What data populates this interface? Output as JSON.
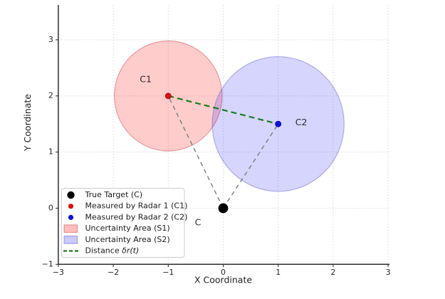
{
  "chart_data": {
    "type": "scatter",
    "xlabel": "X Coordinate",
    "ylabel": "Y Coordinate",
    "xlim": [
      -3,
      3
    ],
    "ylim": [
      -1,
      3.62
    ],
    "xticks": {
      "values": [
        -3,
        -2,
        -1,
        0,
        1,
        2,
        3
      ],
      "labels": [
        "−3",
        "−2",
        "−1",
        "0",
        "1",
        "2",
        "3"
      ]
    },
    "yticks": {
      "values": [
        -1,
        0,
        1,
        2,
        3
      ],
      "labels": [
        "−1",
        "0",
        "1",
        "2",
        "3"
      ]
    },
    "grid": {
      "visible": true,
      "style": "dotted",
      "color": "#d6d6d6"
    },
    "spine_color": "#2d2d2d",
    "points": [
      {
        "id": "C",
        "x": 0,
        "y": 0,
        "fill": "#000000",
        "edge": "#000000",
        "radius_px": 6.5,
        "annotation": "C",
        "annotation_xy": [
          -0.46,
          -0.26
        ]
      },
      {
        "id": "C1",
        "x": -1,
        "y": 2,
        "fill": "#dd1111",
        "edge": "#990000",
        "radius_px": 4,
        "annotation": "C1",
        "annotation_xy": [
          -1.41,
          2.29
        ]
      },
      {
        "id": "C2",
        "x": 1,
        "y": 1.5,
        "fill": "#1111dd",
        "edge": "#000099",
        "radius_px": 4,
        "annotation": "C2",
        "annotation_xy": [
          1.42,
          1.52
        ]
      }
    ],
    "circles": [
      {
        "id": "S1",
        "cx": -1,
        "cy": 2,
        "r": 0.98,
        "fill": "rgba(255,40,40,0.24)",
        "edge": "rgba(210,60,60,0.45)"
      },
      {
        "id": "S2",
        "cx": 1,
        "cy": 1.5,
        "r": 1.2,
        "fill": "rgba(45,45,250,0.20)",
        "edge": "rgba(80,80,210,0.40)"
      }
    ],
    "segments": [
      {
        "id": "c-to-c1",
        "x1": 0,
        "y1": 0,
        "x2": -1,
        "y2": 2,
        "color": "#828282",
        "width": 1.5,
        "dash": "6 5"
      },
      {
        "id": "c-to-c2",
        "x1": 0,
        "y1": 0,
        "x2": 1,
        "y2": 1.5,
        "color": "#828282",
        "width": 1.5,
        "dash": "6 5"
      },
      {
        "id": "distance",
        "x1": -1,
        "y1": 2,
        "x2": 1,
        "y2": 1.5,
        "color": "#1b7e1b",
        "width": 2.2,
        "dash": "8 5"
      }
    ],
    "legend": {
      "position": "lower-left",
      "entries": [
        {
          "marker": "dot",
          "color": "#000000",
          "size": 5.2,
          "label": "True Target (C)"
        },
        {
          "marker": "dot",
          "color": "#dd1111",
          "size": 3.6,
          "label": "Measured by Radar 1 (C1)"
        },
        {
          "marker": "dot",
          "color": "#1111dd",
          "size": 3.6,
          "label": "Measured by Radar 2 (C2)"
        },
        {
          "marker": "patch",
          "color": "rgba(255,40,40,0.30)",
          "edge": "rgba(210,60,60,0.55)",
          "label": "Uncertainty Area (S1)"
        },
        {
          "marker": "patch",
          "color": "rgba(45,45,250,0.25)",
          "edge": "rgba(80,80,210,0.55)",
          "label": "Uncertainty Area (S2)"
        },
        {
          "marker": "dash",
          "color": "#1b7e1b",
          "label": "Distance δr(t)"
        }
      ]
    }
  }
}
